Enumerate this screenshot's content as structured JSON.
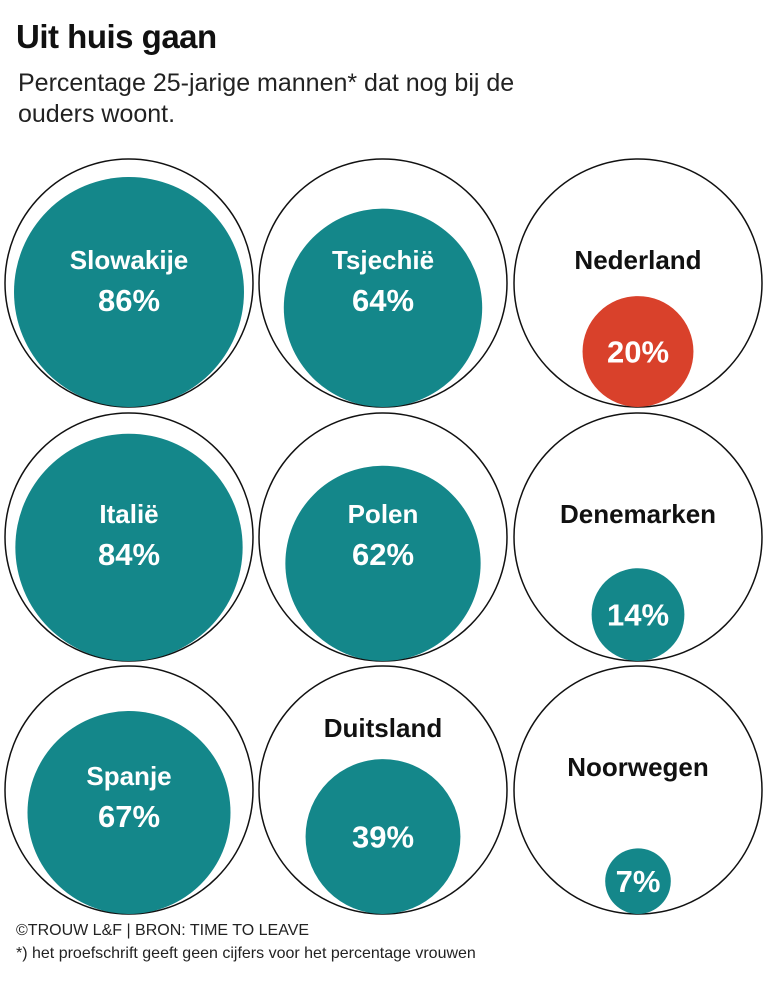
{
  "title": "Uit huis gaan",
  "subtitle": "Percentage 25-jarige mannen* dat nog bij de ouders woont.",
  "credit": "©TROUW L&F | BRON: TIME TO LEAVE",
  "footnote": "*) het proefschrift geeft geen cijfers voor het percentage vrouwen",
  "colors": {
    "default": "#14878a",
    "highlight": "#d9412b",
    "outline": "#111111"
  },
  "chart_data": {
    "type": "proportional-area-circles",
    "title": "Uit huis gaan",
    "unit": "%",
    "max": 100,
    "items": [
      {
        "country": "Slowakije",
        "value": 86,
        "label": "86%",
        "highlight": false
      },
      {
        "country": "Tsjechië",
        "value": 64,
        "label": "64%",
        "highlight": false
      },
      {
        "country": "Nederland",
        "value": 20,
        "label": "20%",
        "highlight": true
      },
      {
        "country": "Italië",
        "value": 84,
        "label": "84%",
        "highlight": false
      },
      {
        "country": "Polen",
        "value": 62,
        "label": "62%",
        "highlight": false
      },
      {
        "country": "Denemarken",
        "value": 14,
        "label": "14%",
        "highlight": false
      },
      {
        "country": "Spanje",
        "value": 67,
        "label": "67%",
        "highlight": false
      },
      {
        "country": "Duitsland",
        "value": 39,
        "label": "39%",
        "highlight": false
      },
      {
        "country": "Noorwegen",
        "value": 7,
        "label": "7%",
        "highlight": false
      }
    ]
  }
}
